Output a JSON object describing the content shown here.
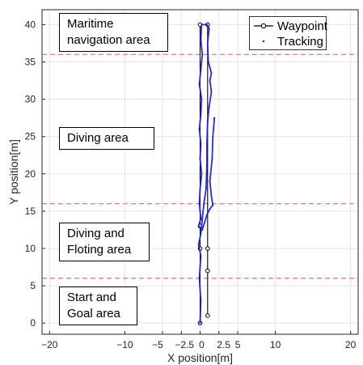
{
  "chart_data": {
    "type": "line",
    "xlabel": "X position[m]",
    "ylabel": "Y position[m]",
    "xlim": [
      -21,
      21
    ],
    "ylim": [
      -1.5,
      42
    ],
    "xticks": [
      -20,
      -10,
      -5,
      -2.5,
      0,
      2.5,
      5,
      10,
      20
    ],
    "xtick_labels": [
      "−20",
      "−10",
      "−5",
      "−2.5",
      "0",
      "2.5",
      "5",
      "10",
      "20"
    ],
    "yticks": [
      0,
      5,
      10,
      15,
      20,
      25,
      30,
      35,
      40
    ],
    "grid": true,
    "legend_position": "top-right",
    "series": [
      {
        "name": "Waypoint",
        "color": "#000000",
        "marker": "circle",
        "points": [
          [
            1,
            1
          ],
          [
            1,
            7
          ],
          [
            1,
            10
          ],
          [
            1,
            40
          ],
          [
            0,
            40
          ],
          [
            0,
            13
          ],
          [
            0,
            10
          ],
          [
            0,
            0
          ]
        ]
      },
      {
        "name": "Tracking",
        "color": "#1f22c8",
        "marker": "point",
        "points": [
          [
            0,
            0
          ],
          [
            0.1,
            3
          ],
          [
            -0.1,
            6
          ],
          [
            0.1,
            9
          ],
          [
            -0.2,
            10.5
          ],
          [
            0.1,
            12
          ],
          [
            0.3,
            14
          ],
          [
            0.5,
            16
          ],
          [
            0.8,
            18
          ],
          [
            0.9,
            21
          ],
          [
            0.9,
            24
          ],
          [
            1.0,
            27
          ],
          [
            1.2,
            29
          ],
          [
            1.5,
            31
          ],
          [
            1.3,
            32.5
          ],
          [
            1.5,
            33.5
          ],
          [
            1.1,
            35
          ],
          [
            1.0,
            37.5
          ],
          [
            1.2,
            39.5
          ],
          [
            0.9,
            40
          ],
          [
            0.2,
            40
          ],
          [
            0.1,
            38
          ],
          [
            0.3,
            36
          ],
          [
            0.1,
            34
          ],
          [
            -0.1,
            32
          ],
          [
            0.2,
            30
          ],
          [
            0.1,
            28
          ],
          [
            -0.1,
            26
          ],
          [
            0.1,
            24
          ],
          [
            0.0,
            22
          ],
          [
            0.2,
            20
          ],
          [
            0.0,
            18
          ],
          [
            -0.1,
            16
          ],
          [
            0.1,
            14
          ],
          [
            -0.2,
            13
          ],
          [
            0.3,
            12.5
          ],
          [
            0.6,
            13.5
          ],
          [
            0.9,
            14.5
          ],
          [
            1.3,
            15.3
          ],
          [
            1.7,
            15.8
          ],
          [
            1.5,
            17
          ],
          [
            1.3,
            19
          ],
          [
            1.6,
            22
          ],
          [
            1.7,
            25
          ],
          [
            1.9,
            27.5
          ]
        ]
      }
    ],
    "boundaries": [
      6,
      16,
      36
    ],
    "boundary_color": "#e8679a",
    "annotations": [
      {
        "text": "Maritime\nnavigation area"
      },
      {
        "text": "Diving area"
      },
      {
        "text": "Diving and\nFloting area"
      },
      {
        "text": "Start and\nGoal area"
      }
    ]
  }
}
